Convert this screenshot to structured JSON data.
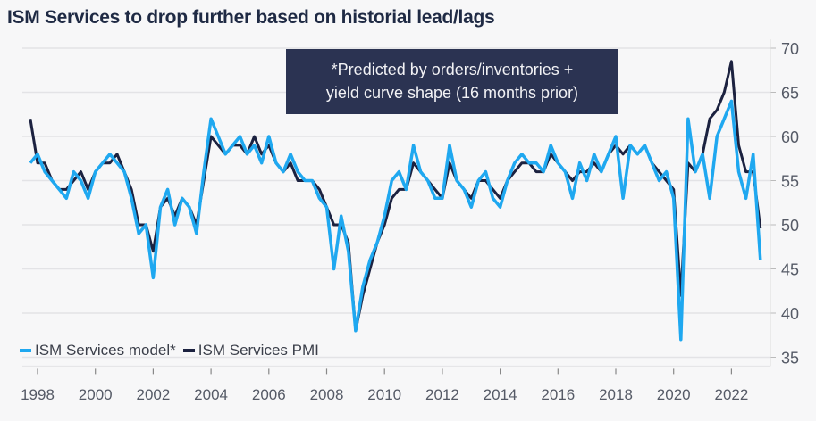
{
  "chart_data": {
    "type": "line",
    "title": "ISM Services to drop further based on historial lead/lags",
    "annotation": [
      "*Predicted by orders/inventories +",
      "yield curve shape (16 months prior)"
    ],
    "xlabel": "",
    "ylabel": "",
    "ylim": [
      35,
      70
    ],
    "yticks": [
      "35",
      "40",
      "45",
      "50",
      "55",
      "60",
      "65",
      "70"
    ],
    "xticks": [
      "1998",
      "2000",
      "2002",
      "2004",
      "2006",
      "2008",
      "2010",
      "2012",
      "2014",
      "2016",
      "2018",
      "2020",
      "2022"
    ],
    "x_start": 1997.75,
    "x_step": 0.25,
    "legend_position": "bottom-left",
    "series": [
      {
        "name": "ISM Services model*",
        "color": "#1fa8f0",
        "values": [
          57,
          58,
          56,
          55,
          54,
          53,
          56,
          55,
          53,
          56,
          57,
          58,
          57,
          56,
          53,
          49,
          50,
          44,
          52,
          54,
          50,
          53,
          52,
          49,
          56,
          62,
          60,
          58,
          59,
          60,
          58,
          59,
          57,
          60,
          57,
          56,
          58,
          56,
          55,
          55,
          53,
          52,
          45,
          51,
          47,
          38,
          43,
          46,
          48,
          51,
          55,
          56,
          54,
          59,
          56,
          55,
          53,
          53,
          59,
          55,
          54,
          52,
          55,
          56,
          53,
          52,
          55,
          57,
          58,
          57,
          57,
          56,
          59,
          57,
          56,
          53,
          57,
          55,
          58,
          56,
          58,
          60,
          53,
          59,
          58,
          59,
          57,
          55,
          56,
          53,
          37,
          62,
          56,
          58,
          53,
          60,
          62,
          64,
          56,
          53,
          58,
          46
        ]
      },
      {
        "name": "ISM Services PMI",
        "color": "#1c2240",
        "values": [
          62,
          57,
          57,
          55,
          54,
          54,
          55,
          56,
          54,
          56,
          57,
          57,
          58,
          56,
          54,
          50,
          50,
          47,
          52,
          53,
          51,
          53,
          52,
          50,
          55,
          60,
          59,
          58,
          59,
          59,
          58,
          60,
          58,
          59,
          57,
          56,
          57,
          55,
          55,
          55,
          54,
          52,
          50,
          50,
          48,
          38,
          42,
          45,
          48,
          50,
          53,
          54,
          54,
          57,
          56,
          55,
          54,
          53,
          57,
          55,
          54,
          53,
          55,
          55,
          54,
          53,
          55,
          56,
          57,
          57,
          56,
          56,
          58,
          57,
          56,
          55,
          56,
          56,
          57,
          56,
          58,
          59,
          58,
          59,
          58,
          59,
          57,
          56,
          55,
          54,
          42,
          57,
          56,
          58,
          62,
          63,
          65,
          68.5,
          59,
          56,
          56,
          49.6
        ]
      }
    ]
  }
}
